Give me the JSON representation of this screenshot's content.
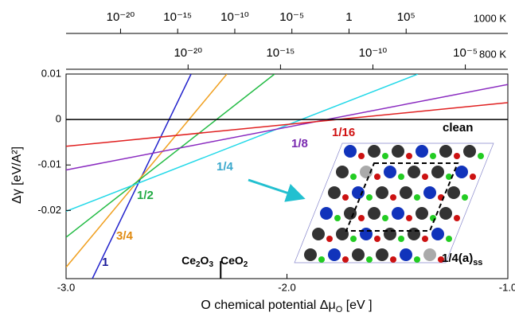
{
  "chart_data": {
    "type": "line",
    "x_label": {
      "main": "O chemical potential Δμ",
      "sub": "O",
      "unit": " [eV ]"
    },
    "y_label": "Δγ  [eV/A²]",
    "xlim": [
      -3.0,
      -1.0
    ],
    "ylim": [
      -0.035,
      0.01
    ],
    "xticks": [
      {
        "value": -3.0,
        "label": "-3.0"
      },
      {
        "value": -2.0,
        "label": "-2.0"
      },
      {
        "value": -1.0,
        "label": "-1.0"
      }
    ],
    "yticks": [
      0.01,
      0,
      -0.01,
      -0.02
    ],
    "series": [
      {
        "name": "1",
        "color": "#2222cc",
        "x": [
          -2.881,
          -2.434
        ],
        "values": [
          -0.035,
          0.01
        ]
      },
      {
        "name": "3/4",
        "color": "#f0a020",
        "x": [
          -3.0,
          -2.272
        ],
        "values": [
          -0.0325,
          0.01
        ]
      },
      {
        "name": "1/2",
        "color": "#22bb44",
        "x": [
          -3.0,
          -2.056
        ],
        "values": [
          -0.0259,
          0.01
        ]
      },
      {
        "name": "1/4",
        "color": "#22d8e8",
        "x": [
          -3.0,
          -1.407
        ],
        "values": [
          -0.0202,
          0.01
        ]
      },
      {
        "name": "1/8",
        "color": "#8a2bc0",
        "x": [
          -3.0,
          -1.0
        ],
        "values": [
          -0.0111,
          0.0077
        ]
      },
      {
        "name": "1/16",
        "color": "#e02020",
        "x": [
          -3.0,
          -1.0
        ],
        "values": [
          -0.0059,
          0.0037
        ]
      },
      {
        "name": "clean",
        "color": "#000000",
        "x": [
          -3.0,
          -1.0
        ],
        "values": [
          0,
          0
        ]
      }
    ],
    "phase_boundary": {
      "x": -2.3,
      "left": {
        "a": "Ce",
        "b": "2",
        "c": "O",
        "d": "3"
      },
      "right": {
        "a": "CeO",
        "b": "2"
      }
    },
    "inset_label": {
      "main": "1/4(a)",
      "sub": "ss"
    },
    "top_axes": [
      {
        "label": "1000 K",
        "log": true,
        "xlim": [
          1.7e-25,
          80000000000000.0
        ],
        "ticks": [
          {
            "value": 1e-20,
            "label": "10⁻²⁰"
          },
          {
            "value": 1e-15,
            "label": "10⁻¹⁵"
          },
          {
            "value": 1e-10,
            "label": "10⁻¹⁰"
          },
          {
            "value": 1e-05,
            "label": "10⁻⁵"
          },
          1,
          {
            "value": 100000.0,
            "label": "10⁵"
          }
        ]
      },
      {
        "label": "800 K",
        "log": true,
        "xlim": [
          2.5e-27,
          0.002
        ],
        "ticks": [
          {
            "value": 1e-20,
            "label": "10⁻²⁰"
          },
          {
            "value": 1e-15,
            "label": "10⁻¹⁵"
          },
          {
            "value": 1e-10,
            "label": "10⁻¹⁰"
          },
          {
            "value": 1e-05,
            "label": "10⁻⁵"
          }
        ]
      }
    ]
  }
}
